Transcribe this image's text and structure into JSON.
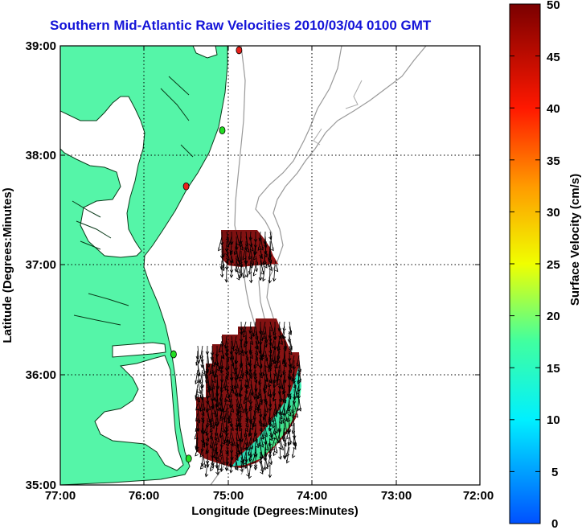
{
  "title": "Southern Mid-Atlantic Raw Velocities 2010/03/04 0100 GMT",
  "x_axis": {
    "label": "Longitude (Degrees:Minutes)",
    "ticks": [
      "77:00",
      "76:00",
      "75:00",
      "74:00",
      "73:00",
      "72:00"
    ]
  },
  "y_axis": {
    "label": "Latitude (Degrees:Minutes)",
    "ticks": [
      "39:00",
      "38:00",
      "37:00",
      "36:00",
      "35:00"
    ]
  },
  "colorbar": {
    "label": "Surface Velocity (cm/s)",
    "ticks": [
      "50",
      "45",
      "40",
      "35",
      "30",
      "25",
      "20",
      "15",
      "10",
      "5",
      "0"
    ],
    "range": [
      0,
      50
    ]
  },
  "map": {
    "lon_range": [
      -77,
      -72
    ],
    "lat_range": [
      35,
      39
    ],
    "grid": true,
    "land_color": "#55f5a8",
    "stations": [
      {
        "lon": -74.87,
        "lat": 38.96,
        "color": "#e8201a"
      },
      {
        "lon": -75.07,
        "lat": 38.23,
        "color": "#22dd22"
      },
      {
        "lon": -75.5,
        "lat": 37.72,
        "color": "#e8201a"
      },
      {
        "lon": -75.65,
        "lat": 36.19,
        "color": "#22dd22"
      },
      {
        "lon": -75.47,
        "lat": 35.24,
        "color": "#22dd22"
      }
    ]
  }
}
